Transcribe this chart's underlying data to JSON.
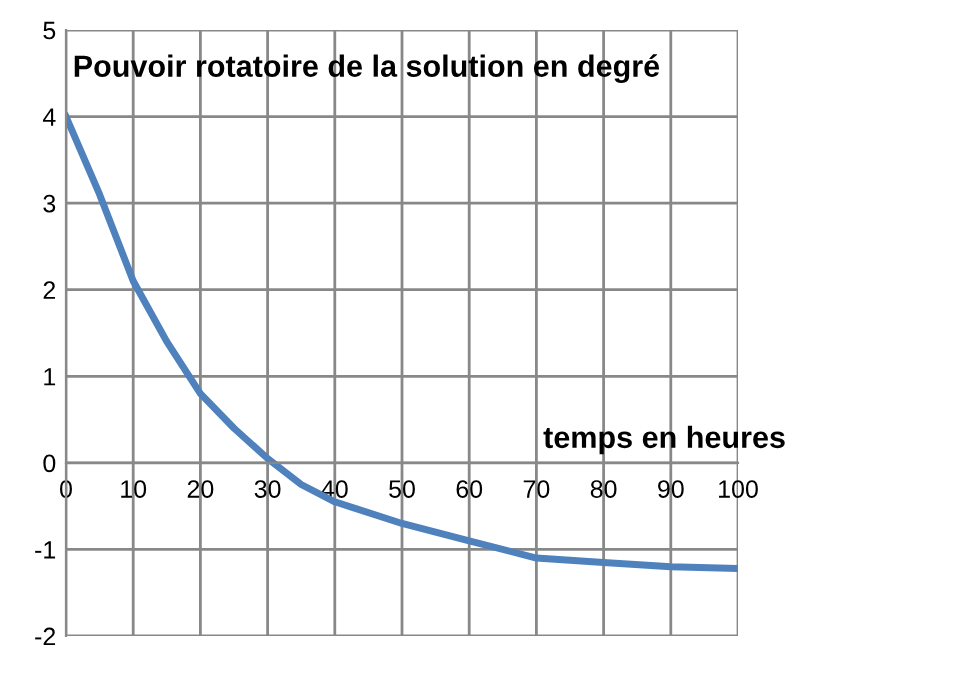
{
  "chart_data": {
    "type": "line",
    "xlabel": "temps en heures",
    "ylabel": "Pouvoir rotatoire de la solution en degré",
    "x": [
      0,
      5,
      10,
      15,
      20,
      25,
      30,
      35,
      40,
      50,
      60,
      70,
      80,
      90,
      100
    ],
    "series": [
      {
        "color": "#4f81bd",
        "values": [
          4,
          3.1,
          2.1,
          1.4,
          0.8,
          0.4,
          0.05,
          -0.25,
          -0.45,
          -0.7,
          -0.9,
          -1.1,
          -1.15,
          -1.2,
          -1.22
        ]
      }
    ],
    "xlim": [
      0,
      100
    ],
    "xticks": [
      0,
      10,
      20,
      30,
      40,
      50,
      60,
      70,
      80,
      90,
      100
    ],
    "ylim": [
      -2,
      5
    ],
    "yticks": [
      -2,
      -1,
      0,
      1,
      2,
      3,
      4,
      5
    ],
    "grid": true,
    "marker": "none",
    "line_style": "solid",
    "legend": false
  }
}
